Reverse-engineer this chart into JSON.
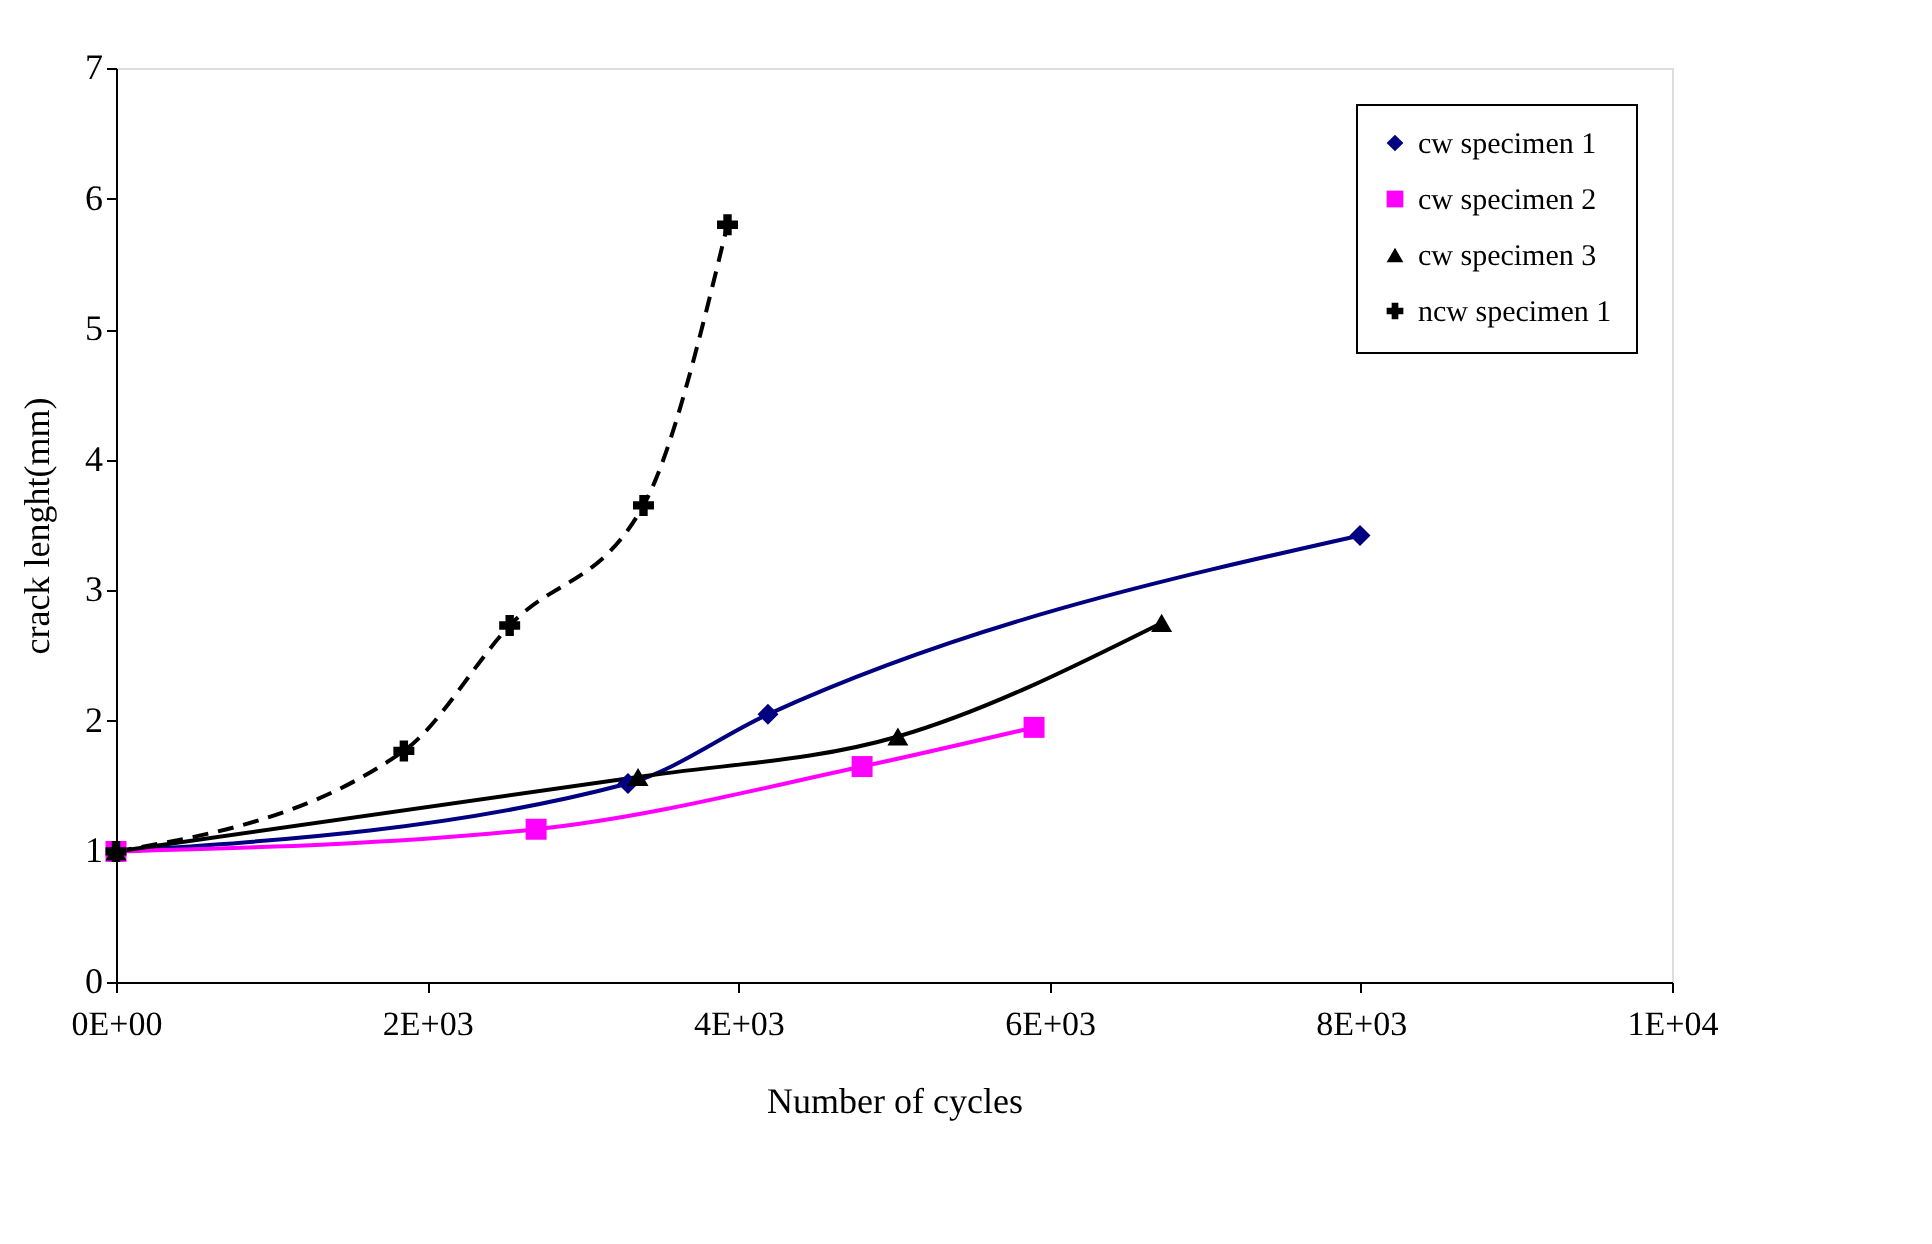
{
  "chart_data": {
    "type": "line",
    "xlabel": "Number of cycles",
    "ylabel": "crack lenght(mm)",
    "xlim": [
      0,
      10000
    ],
    "ylim": [
      0,
      7
    ],
    "xticks": [
      {
        "value": 0,
        "label": "0E+00"
      },
      {
        "value": 2000,
        "label": "2E+03"
      },
      {
        "value": 4000,
        "label": "4E+03"
      },
      {
        "value": 6000,
        "label": "6E+03"
      },
      {
        "value": 8000,
        "label": "8E+03"
      },
      {
        "value": 10000,
        "label": "1E+04"
      }
    ],
    "yticks": [
      0,
      1,
      2,
      3,
      4,
      5,
      6,
      7
    ],
    "grid": false,
    "legend": "top right",
    "series": [
      {
        "name": "cw specimen 1",
        "color": "#000080",
        "marker": "diamond",
        "line_style": "solid",
        "x": [
          0,
          3290,
          4190,
          7995
        ],
        "values": [
          1,
          1.52,
          2.05,
          3.42
        ]
      },
      {
        "name": "cw specimen 2",
        "color": "#ff00ff",
        "marker": "square",
        "line_style": "solid",
        "x": [
          0,
          2700,
          4795,
          5900
        ],
        "values": [
          1,
          1.17,
          1.65,
          1.95
        ]
      },
      {
        "name": "cw specimen  3",
        "color": "#000000",
        "marker": "triangle",
        "line_style": "solid",
        "x": [
          0,
          3355,
          5025,
          6720
        ],
        "values": [
          1,
          1.57,
          1.88,
          2.75
        ]
      },
      {
        "name": "ncw specimen 1",
        "color": "#000000",
        "marker": "cross",
        "line_style": "dashed",
        "x": [
          0,
          1850,
          2530,
          3390,
          3930
        ],
        "values": [
          1,
          1.77,
          2.73,
          3.65,
          5.8
        ]
      }
    ]
  }
}
